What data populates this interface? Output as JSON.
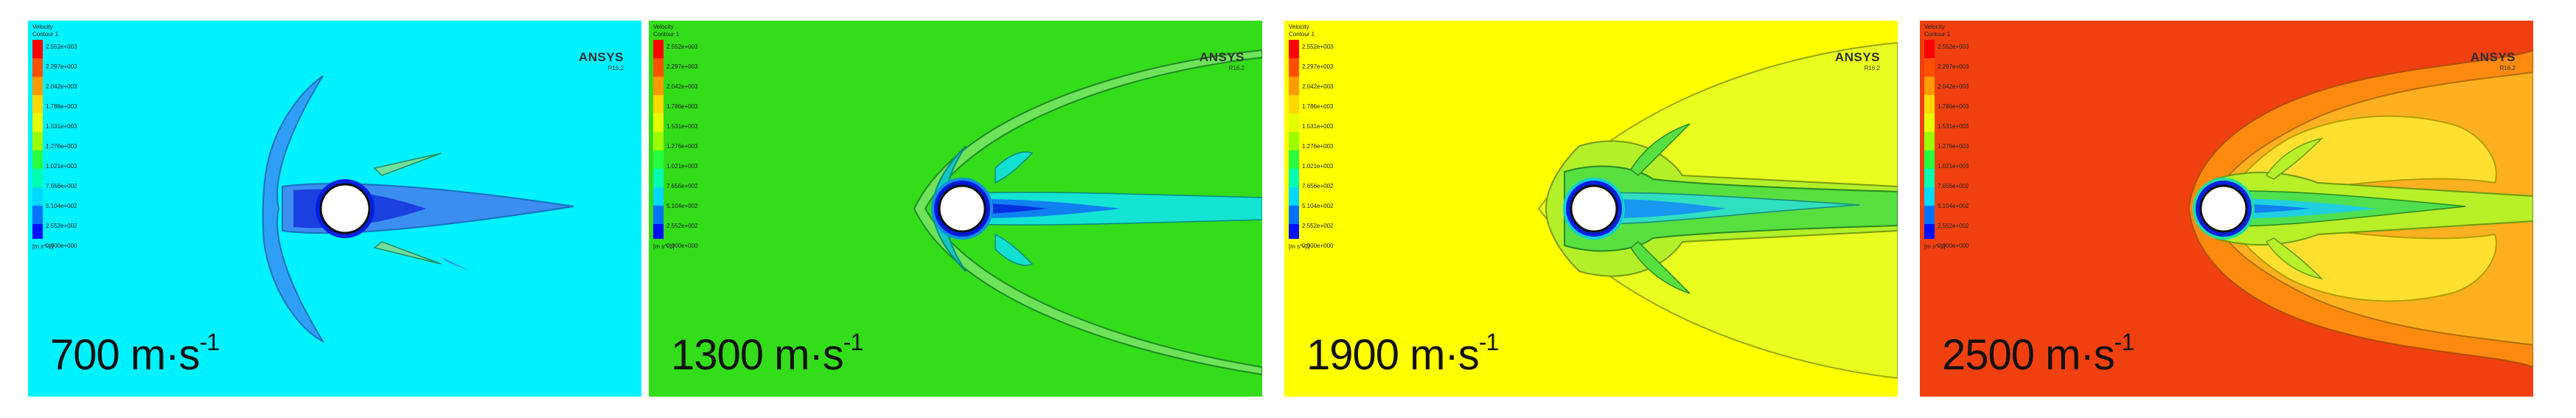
{
  "legend": {
    "title": "Velocity\nContour 1",
    "ticks": [
      "2.552e+003",
      "2.297e+003",
      "2.042e+003",
      "1.786e+003",
      "1.531e+003",
      "1.276e+003",
      "1.021e+003",
      "7.656e+002",
      "5.104e+002",
      "2.552e+002",
      "0.000e+000"
    ],
    "unit": "[m s^-1]"
  },
  "logo": {
    "brand": "ANSYS",
    "version": "R16.2"
  },
  "panels": [
    {
      "speed_value": "700",
      "speed_unit": " m·s",
      "speed_exp": "-1",
      "background": "#00f2ff"
    },
    {
      "speed_value": "1300",
      "speed_unit": " m·s",
      "speed_exp": "-1",
      "background": "#33dd1a"
    },
    {
      "speed_value": "1900",
      "speed_unit": " m·s",
      "speed_exp": "-1",
      "background": "#ffff00"
    },
    {
      "speed_value": "2500",
      "speed_unit": " m·s",
      "speed_exp": "-1",
      "background": "#f04010"
    }
  ],
  "colormap": [
    "#ff0000",
    "#ff5000",
    "#ff9a00",
    "#ffd800",
    "#e4ff00",
    "#9cff00",
    "#28ff40",
    "#00ffb0",
    "#00d8ff",
    "#0070ff",
    "#0010ff"
  ]
}
